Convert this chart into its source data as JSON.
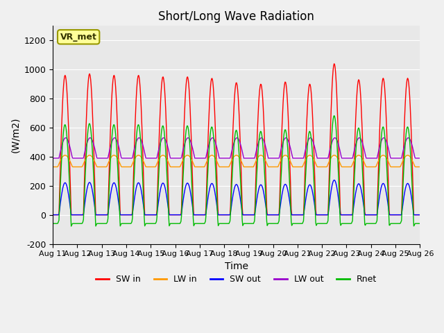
{
  "title": "Short/Long Wave Radiation",
  "xlabel": "Time",
  "ylabel": "(W/m2)",
  "ylim": [
    -200,
    1300
  ],
  "yticks": [
    -200,
    0,
    200,
    400,
    600,
    800,
    1000,
    1200
  ],
  "date_start": "Aug 11",
  "date_end": "Aug 26",
  "xtick_labels": [
    "Aug 11",
    "Aug 12",
    "Aug 13",
    "Aug 14",
    "Aug 15",
    "Aug 16",
    "Aug 17",
    "Aug 18",
    "Aug 19",
    "Aug 20",
    "Aug 21",
    "Aug 22",
    "Aug 23",
    "Aug 24",
    "Aug 25",
    "Aug 26"
  ],
  "legend_labels": [
    "SW in",
    "LW in",
    "SW out",
    "LW out",
    "Rnet"
  ],
  "legend_colors": [
    "#ff0000",
    "#ff9900",
    "#0000ff",
    "#9900cc",
    "#00bb00"
  ],
  "station_label": "VR_met",
  "bg_color": "#e8e8e8",
  "plot_bg": "#e8e8e8",
  "n_days": 15,
  "n_pts_per_day": 48,
  "sw_in_peaks": [
    960,
    970,
    960,
    960,
    950,
    950,
    940,
    910,
    900,
    915,
    900,
    1040,
    930,
    940,
    940
  ],
  "lw_in_base": 330,
  "lw_in_day_peak": 410,
  "sw_out_day_peak": 220,
  "lw_out_base": 390,
  "lw_out_day_peak": 420
}
